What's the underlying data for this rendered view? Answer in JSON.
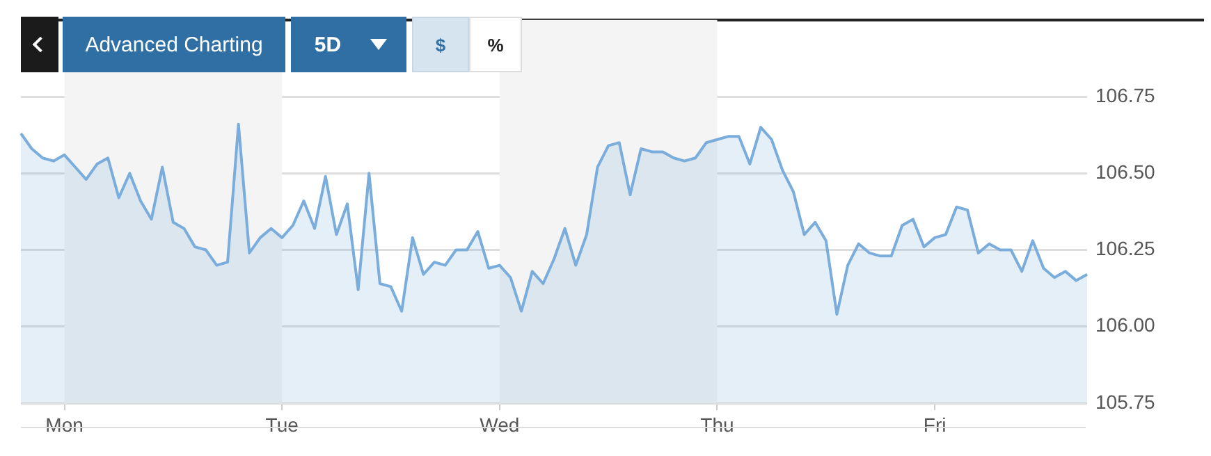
{
  "chart_data": {
    "type": "area",
    "categories": [
      null,
      null,
      null,
      null,
      "Mon",
      null,
      null,
      null,
      null,
      null,
      null,
      null,
      null,
      null,
      null,
      null,
      null,
      null,
      null,
      null,
      null,
      null,
      null,
      null,
      "Tue",
      null,
      null,
      null,
      null,
      null,
      null,
      null,
      null,
      null,
      null,
      null,
      null,
      null,
      null,
      null,
      null,
      null,
      null,
      null,
      "Wed",
      null,
      null,
      null,
      null,
      null,
      null,
      null,
      null,
      null,
      null,
      null,
      null,
      null,
      null,
      null,
      null,
      null,
      null,
      null,
      "Thu",
      null,
      null,
      null,
      null,
      null,
      null,
      null,
      null,
      null,
      null,
      null,
      null,
      null,
      null,
      null,
      null,
      null,
      null,
      null,
      "Fri",
      null,
      null,
      null,
      null,
      null,
      null,
      null,
      null,
      null,
      null,
      null,
      null,
      null,
      null
    ],
    "series": [
      {
        "color": "#7aaddc",
        "values": [
          106.63,
          106.58,
          106.55,
          106.54,
          106.56,
          106.52,
          106.48,
          106.53,
          106.55,
          106.42,
          106.5,
          106.41,
          106.35,
          106.52,
          106.34,
          106.32,
          106.26,
          106.25,
          106.2,
          106.21,
          106.66,
          106.24,
          106.29,
          106.32,
          106.29,
          106.33,
          106.41,
          106.32,
          106.49,
          106.3,
          106.4,
          106.12,
          106.5,
          106.14,
          106.13,
          106.05,
          106.29,
          106.17,
          106.21,
          106.2,
          106.25,
          106.25,
          106.31,
          106.19,
          106.2,
          106.16,
          106.05,
          106.18,
          106.14,
          106.22,
          106.32,
          106.2,
          106.3,
          106.52,
          106.59,
          106.6,
          106.43,
          106.58,
          106.57,
          106.57,
          106.55,
          106.54,
          106.55,
          106.6,
          106.61,
          106.62,
          106.62,
          106.53,
          106.65,
          106.61,
          106.51,
          106.44,
          106.3,
          106.34,
          106.28,
          106.04,
          106.2,
          106.27,
          106.24,
          106.23,
          106.23,
          106.33,
          106.35,
          106.26,
          106.29,
          106.3,
          106.39,
          106.38,
          106.24,
          106.27,
          106.25,
          106.25,
          106.18,
          106.28,
          106.19,
          106.16,
          106.18,
          106.15,
          106.17
        ]
      }
    ],
    "ylim": [
      105.75,
      107.0
    ],
    "yticks": [
      {
        "value": 105.75,
        "label": "105.75"
      },
      {
        "value": 106,
        "label": "106.00"
      },
      {
        "value": 106.25,
        "label": "106.25"
      },
      {
        "value": 106.5,
        "label": "106.50"
      },
      {
        "value": 106.75,
        "label": "106.75"
      }
    ],
    "grid": "y",
    "bands": [
      {
        "axis": "x",
        "from": "Mon",
        "to": "Tue",
        "color": "#f4f4f4"
      },
      {
        "axis": "x",
        "from": "Wed",
        "to": "Thu",
        "color": "#f4f4f4"
      }
    ],
    "annotations": [
      "Advanced Charting",
      "5D",
      "$",
      "%"
    ]
  }
}
